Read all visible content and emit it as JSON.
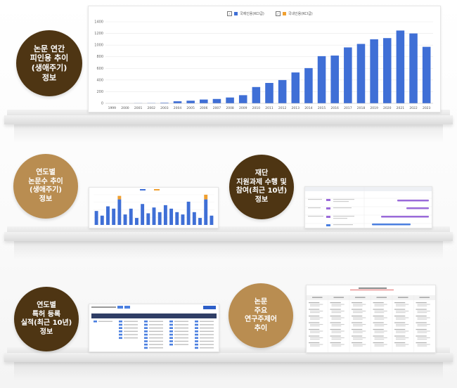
{
  "labels": {
    "citations": "논문 연간\n피인용 추이\n(생애주기)\n정보",
    "papers": "연도별\n논문수 추이\n(생애주기)\n정보",
    "funding": "재단\n지원과제 수행 및\n참여(최근 10년)\n정보",
    "patents": "연도별\n특허 등록\n실적(최근 10년)\n정보",
    "topics": "논문\n주요\n연구주제어\n추이"
  },
  "colors": {
    "dark_circle": "#4e3513",
    "light_circle": "#b98d51",
    "bar_blue": "#3f6fd6",
    "bar_orange": "#f0a030",
    "gantt_purple": "#9a6ad9",
    "gantt_blue": "#4a7fe0"
  },
  "legend": {
    "series1": "국제인용(KCI급)",
    "series2": "국내인용(KCI급)"
  },
  "chart_data": [
    {
      "type": "bar",
      "categories": [
        "1999",
        "2000",
        "2001",
        "2002",
        "2003",
        "2004",
        "2005",
        "2006",
        "2007",
        "2008",
        "2009",
        "2010",
        "2011",
        "2012",
        "2013",
        "2014",
        "2015",
        "2016",
        "2017",
        "2018",
        "2019",
        "2020",
        "2021",
        "2022",
        "2023"
      ],
      "ylim": [
        0,
        1400
      ],
      "yticks": [
        0,
        200,
        400,
        600,
        800,
        1000,
        1200,
        1400
      ],
      "series": [
        {
          "name": "국제인용(KCI급)",
          "values": [
            0,
            0,
            3,
            5,
            10,
            35,
            45,
            65,
            75,
            100,
            140,
            280,
            350,
            400,
            530,
            605,
            810,
            820,
            960,
            1020,
            1100,
            1120,
            1250,
            1200,
            970
          ]
        },
        {
          "name": "국내인용(KCI급)",
          "values": [
            0,
            0,
            0,
            0,
            0,
            0,
            0,
            0,
            0,
            0,
            0,
            0,
            0,
            0,
            0,
            0,
            0,
            0,
            0,
            0,
            0,
            0,
            0,
            0,
            0
          ]
        }
      ],
      "grid": true,
      "legend_position": "top"
    },
    {
      "type": "bar",
      "values": [
        12,
        8,
        16,
        14,
        22,
        9,
        14,
        6,
        18,
        10,
        15,
        11,
        17,
        14,
        11,
        9,
        20,
        11,
        6,
        22,
        8
      ],
      "stack": [
        0,
        0,
        0,
        0,
        3,
        0,
        0,
        0,
        0,
        0,
        0,
        0,
        0,
        0,
        0,
        0,
        0,
        0,
        0,
        4,
        0
      ],
      "legend_position": "top"
    }
  ]
}
